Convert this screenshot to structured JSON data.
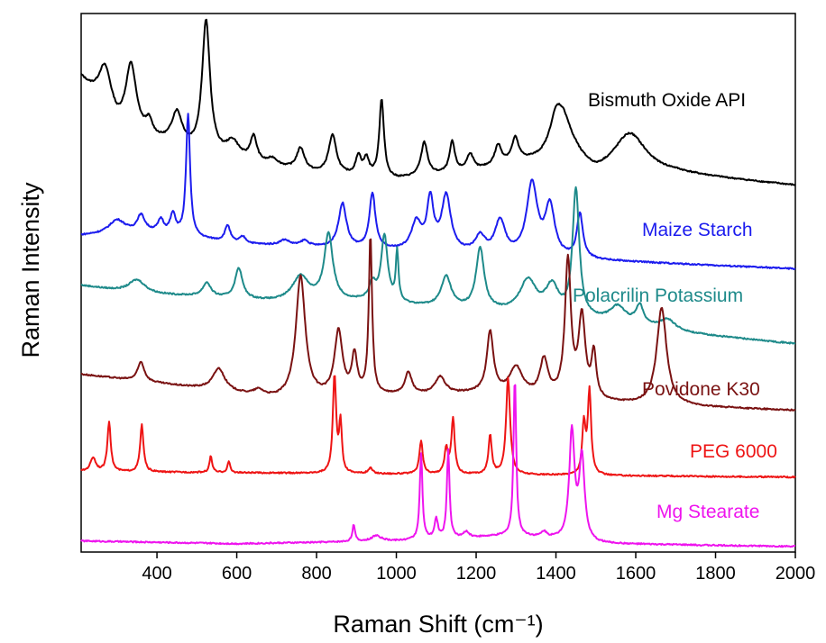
{
  "chart_data": {
    "type": "line",
    "title": "",
    "xlabel": "Raman Shift (cm⁻¹)",
    "ylabel": "Raman Intensity",
    "xlim": [
      210,
      2000
    ],
    "x_ticks": [
      "400",
      "600",
      "800",
      "1000",
      "1200",
      "1400",
      "1600",
      "1800",
      "2000"
    ],
    "y_ticks": [],
    "grid": false,
    "legend": "labels placed beside each trace on the right",
    "series": [
      {
        "name": "Bismuth Oxide API",
        "color": "#000000",
        "baseline": 6.6,
        "base_shape": [
          [
            210,
            1.9
          ],
          [
            300,
            1.0
          ],
          [
            500,
            0.55
          ],
          [
            800,
            0.2
          ],
          [
            1000,
            0.1
          ],
          [
            1200,
            0.25
          ],
          [
            1300,
            0.4
          ],
          [
            1450,
            0.4
          ],
          [
            1500,
            0.15
          ],
          [
            1700,
            0.2
          ],
          [
            2000,
            0.0
          ]
        ],
        "peaks": [
          [
            270,
            0.8,
            20
          ],
          [
            335,
            1.2,
            16
          ],
          [
            380,
            0.25,
            10
          ],
          [
            450,
            0.6,
            16
          ],
          [
            523,
            2.4,
            12
          ],
          [
            590,
            0.3,
            20
          ],
          [
            642,
            0.45,
            10
          ],
          [
            690,
            0.12,
            15
          ],
          [
            760,
            0.4,
            12
          ],
          [
            840,
            0.7,
            12
          ],
          [
            905,
            0.35,
            8
          ],
          [
            925,
            0.3,
            8
          ],
          [
            963,
            1.4,
            7
          ],
          [
            1070,
            0.6,
            10
          ],
          [
            1140,
            0.55,
            8
          ],
          [
            1185,
            0.3,
            10
          ],
          [
            1255,
            0.35,
            10
          ],
          [
            1298,
            0.4,
            10
          ],
          [
            1400,
            0.6,
            20
          ],
          [
            1420,
            0.6,
            25
          ],
          [
            1585,
            0.75,
            50
          ]
        ]
      },
      {
        "name": "Maize Starch",
        "color": "#1c1cee",
        "baseline": 5.1,
        "base_shape": [
          [
            210,
            0.6
          ],
          [
            400,
            0.65
          ],
          [
            600,
            0.45
          ],
          [
            900,
            0.35
          ],
          [
            1200,
            0.25
          ],
          [
            1500,
            0.15
          ],
          [
            2000,
            0.0
          ]
        ],
        "peaks": [
          [
            300,
            0.25,
            25
          ],
          [
            360,
            0.3,
            12
          ],
          [
            410,
            0.22,
            8
          ],
          [
            440,
            0.35,
            8
          ],
          [
            478,
            2.2,
            6
          ],
          [
            577,
            0.3,
            8
          ],
          [
            615,
            0.12,
            10
          ],
          [
            720,
            0.1,
            15
          ],
          [
            770,
            0.1,
            12
          ],
          [
            865,
            0.8,
            12
          ],
          [
            940,
            1.0,
            9
          ],
          [
            1050,
            0.5,
            15
          ],
          [
            1085,
            0.9,
            10
          ],
          [
            1125,
            1.0,
            14
          ],
          [
            1210,
            0.3,
            15
          ],
          [
            1260,
            0.6,
            15
          ],
          [
            1340,
            1.3,
            16
          ],
          [
            1385,
            0.9,
            14
          ],
          [
            1460,
            0.8,
            9
          ]
        ]
      },
      {
        "name": "Polacrilin Potassium",
        "color": "#1e8a8a",
        "baseline": 3.75,
        "base_shape": [
          [
            210,
            1.05
          ],
          [
            350,
            0.9
          ],
          [
            500,
            0.85
          ],
          [
            700,
            0.75
          ],
          [
            900,
            0.75
          ],
          [
            1200,
            0.6
          ],
          [
            1500,
            0.4
          ],
          [
            1700,
            0.2
          ],
          [
            2000,
            0.0
          ]
        ],
        "peaks": [
          [
            350,
            0.25,
            25
          ],
          [
            525,
            0.25,
            12
          ],
          [
            605,
            0.55,
            11
          ],
          [
            760,
            0.45,
            25
          ],
          [
            830,
            1.2,
            13
          ],
          [
            940,
            0.3,
            10
          ],
          [
            970,
            1.2,
            10
          ],
          [
            1002,
            0.9,
            4
          ],
          [
            1125,
            0.55,
            15
          ],
          [
            1210,
            1.1,
            12
          ],
          [
            1330,
            0.6,
            25
          ],
          [
            1390,
            0.5,
            20
          ],
          [
            1450,
            2.3,
            10
          ],
          [
            1555,
            0.3,
            25
          ],
          [
            1610,
            0.35,
            12
          ],
          [
            1680,
            0.2,
            25
          ]
        ]
      },
      {
        "name": "Povidone K30",
        "color": "#7a1212",
        "baseline": 2.55,
        "base_shape": [
          [
            210,
            0.65
          ],
          [
            500,
            0.4
          ],
          [
            700,
            0.2
          ],
          [
            900,
            0.25
          ],
          [
            1200,
            0.3
          ],
          [
            1400,
            0.2
          ],
          [
            1600,
            0.1
          ],
          [
            2000,
            0.0
          ]
        ],
        "peaks": [
          [
            360,
            0.35,
            10
          ],
          [
            555,
            0.4,
            18
          ],
          [
            655,
            0.1,
            15
          ],
          [
            760,
            2.2,
            14
          ],
          [
            855,
            1.15,
            12
          ],
          [
            895,
            0.7,
            8
          ],
          [
            935,
            2.85,
            5
          ],
          [
            1030,
            0.4,
            10
          ],
          [
            1110,
            0.3,
            15
          ],
          [
            1235,
            1.1,
            10
          ],
          [
            1300,
            0.5,
            20
          ],
          [
            1370,
            0.65,
            12
          ],
          [
            1430,
            2.45,
            9
          ],
          [
            1465,
            1.45,
            10
          ],
          [
            1495,
            0.8,
            7
          ],
          [
            1665,
            1.75,
            15
          ]
        ]
      },
      {
        "name": "PEG 6000",
        "color": "#ee1414",
        "baseline": 1.35,
        "base_shape": [
          [
            210,
            0.1
          ],
          [
            2000,
            0.0
          ]
        ],
        "peaks": [
          [
            240,
            0.25,
            8
          ],
          [
            280,
            0.9,
            5
          ],
          [
            362,
            0.85,
            5
          ],
          [
            535,
            0.3,
            4
          ],
          [
            580,
            0.2,
            4
          ],
          [
            845,
            1.75,
            5
          ],
          [
            860,
            0.9,
            4
          ],
          [
            935,
            0.1,
            6
          ],
          [
            1062,
            0.6,
            5
          ],
          [
            1125,
            0.45,
            5
          ],
          [
            1142,
            1.0,
            5
          ],
          [
            1235,
            0.7,
            5
          ],
          [
            1280,
            1.75,
            6
          ],
          [
            1470,
            0.9,
            5
          ],
          [
            1484,
            1.5,
            5
          ]
        ]
      },
      {
        "name": "Mg Stearate",
        "color": "#ee14ee",
        "baseline": 0.1,
        "base_shape": [
          [
            210,
            0.1
          ],
          [
            600,
            0.05
          ],
          [
            1000,
            0.1
          ],
          [
            1300,
            0.2
          ],
          [
            1500,
            0.05
          ],
          [
            2000,
            0.0
          ]
        ],
        "peaks": [
          [
            893,
            0.3,
            4
          ],
          [
            950,
            0.1,
            15
          ],
          [
            1062,
            1.55,
            4
          ],
          [
            1100,
            0.35,
            5
          ],
          [
            1130,
            1.6,
            4
          ],
          [
            1175,
            0.1,
            8
          ],
          [
            1297,
            2.85,
            4
          ],
          [
            1370,
            0.1,
            8
          ],
          [
            1440,
            1.95,
            8
          ],
          [
            1465,
            1.5,
            8
          ]
        ]
      }
    ]
  }
}
